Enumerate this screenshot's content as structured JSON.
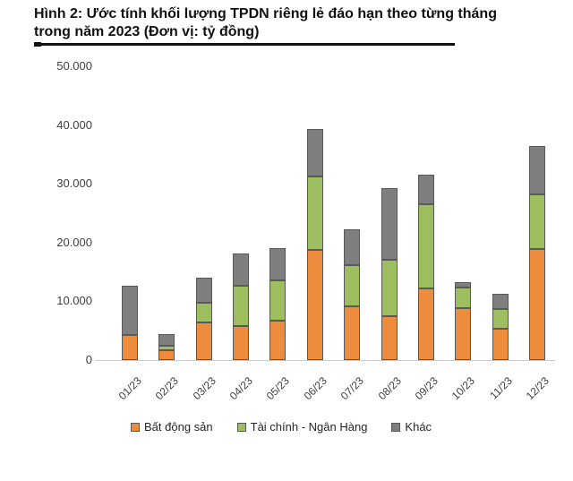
{
  "figure": {
    "title_line1": "Hình 2: Ước tính khối lượng TPDN riêng lẻ đáo hạn theo từng tháng",
    "title_line2": "trong năm 2023 (Đơn vị: tỷ đồng)"
  },
  "colors": {
    "real_estate": "#ED8C3C",
    "finance_banking": "#9CBE5F",
    "other": "#7F7F7F",
    "segment_border": "#595959",
    "axis_line": "#C9C9C9",
    "tick_text": "#404040",
    "title_text": "#111111"
  },
  "chart_data": {
    "type": "bar",
    "stacked": true,
    "title": "Ước tính khối lượng TPDN riêng lẻ đáo hạn theo từng tháng trong năm 2023",
    "unit": "tỷ đồng",
    "categories": [
      "01/23",
      "02/23",
      "03/23",
      "04/23",
      "05/23",
      "06/23",
      "07/23",
      "08/23",
      "09/23",
      "10/23",
      "11/23",
      "12/23"
    ],
    "series": [
      {
        "name": "Bất động sản",
        "color": "#ED8C3C",
        "values": [
          4200,
          1700,
          6400,
          5800,
          6700,
          18800,
          9200,
          7500,
          12200,
          8800,
          5400,
          18900
        ]
      },
      {
        "name": "Tài chính - Ngân Hàng",
        "color": "#9CBE5F",
        "values": [
          0,
          800,
          3300,
          6800,
          6900,
          12400,
          6900,
          9600,
          14300,
          3500,
          3300,
          9300
        ]
      },
      {
        "name": "Khác",
        "color": "#7F7F7F",
        "values": [
          8400,
          2000,
          4300,
          5600,
          5500,
          8200,
          6200,
          12200,
          5000,
          900,
          2600,
          8200
        ]
      }
    ],
    "totals": [
      12600,
      4500,
      14000,
      18200,
      19100,
      39400,
      22300,
      29300,
      31500,
      13200,
      11300,
      36400
    ],
    "ylim": [
      0,
      50000
    ],
    "yticks": [
      "0",
      "10.000",
      "20.000",
      "30.000",
      "40.000",
      "50.000"
    ],
    "xlabel": "",
    "ylabel": "",
    "grid": false,
    "legend_position": "bottom"
  }
}
